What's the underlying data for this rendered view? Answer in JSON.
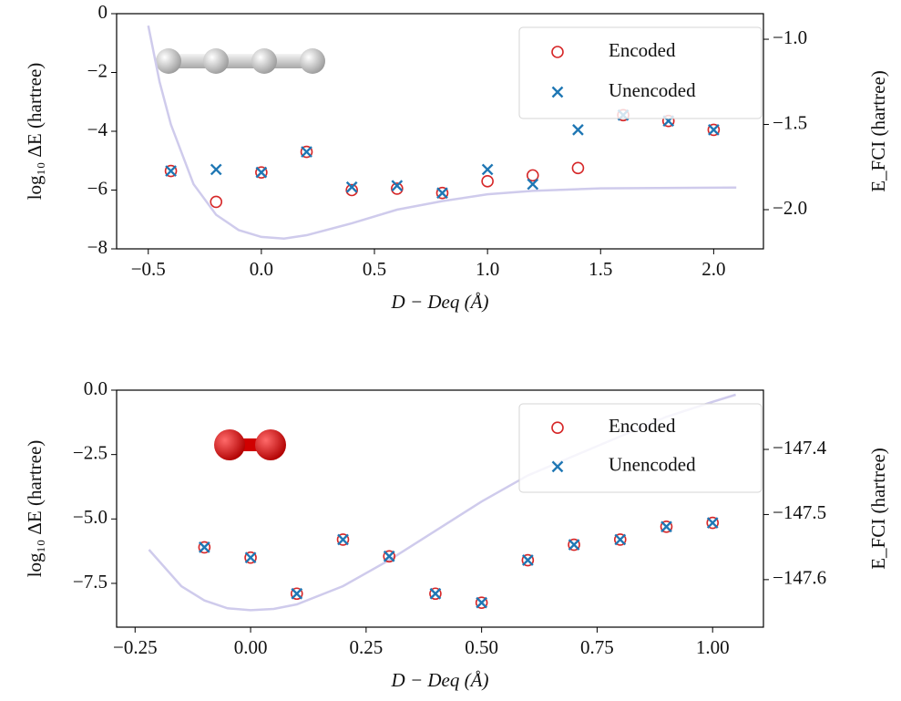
{
  "chart_data": [
    {
      "type": "scatter",
      "xlabel": "D − Deq (Å)",
      "ylabel": "log₁₀ ΔE (hartree)",
      "y2label": "E_FCI (hartree)",
      "xlim": [
        -0.64,
        2.22
      ],
      "ylim": [
        -8,
        0
      ],
      "y2lim": [
        -2.23,
        -0.85
      ],
      "xticks": [
        {
          "value": -0.5,
          "label": "−0.5"
        },
        {
          "value": 0,
          "label": "0.0"
        },
        0.5,
        {
          "value": 1,
          "label": "1.0"
        },
        1.5,
        {
          "value": 2,
          "label": "2.0"
        }
      ],
      "yticks": [
        {
          "value": -8,
          "label": "−8"
        },
        {
          "value": -6,
          "label": "−6"
        },
        {
          "value": -4,
          "label": "−4"
        },
        {
          "value": -2,
          "label": "−2"
        },
        0
      ],
      "y2ticks": [
        {
          "value": -2,
          "label": "−2.0"
        },
        {
          "value": -1.5,
          "label": "−1.5"
        },
        {
          "value": -1,
          "label": "−1.0"
        }
      ],
      "legend": "upper right",
      "series": [
        {
          "name": "Encoded",
          "color": "#d62728",
          "marker": "circle",
          "x": [
            -0.4,
            -0.2,
            0,
            0.2,
            0.4,
            0.6,
            0.8,
            1.0,
            1.2,
            1.4,
            1.6,
            1.8,
            2.0
          ],
          "values": [
            -5.35,
            -6.4,
            -5.4,
            -4.7,
            -6.0,
            -5.95,
            -6.1,
            -5.7,
            -5.5,
            -5.25,
            -3.45,
            -3.65,
            -3.95
          ]
        },
        {
          "name": "Unencoded",
          "color": "#1f77b4",
          "marker": "x",
          "x": [
            -0.4,
            -0.2,
            0,
            0.2,
            0.4,
            0.6,
            0.8,
            1.0,
            1.2,
            1.4,
            1.6,
            1.8,
            2.0
          ],
          "values": [
            -5.35,
            -5.3,
            -5.4,
            -4.7,
            -5.9,
            -5.85,
            -6.1,
            -5.3,
            -5.8,
            -3.95,
            -3.45,
            -3.65,
            -3.95
          ]
        }
      ],
      "curve": {
        "color": "#cfcbec",
        "axis": "y2",
        "x": [
          -0.5,
          -0.45,
          -0.4,
          -0.3,
          -0.2,
          -0.1,
          0,
          0.1,
          0.2,
          0.4,
          0.6,
          0.8,
          1.0,
          1.2,
          1.5,
          2.1
        ],
        "values": [
          -0.92,
          -1.25,
          -1.5,
          -1.85,
          -2.03,
          -2.12,
          -2.16,
          -2.17,
          -2.15,
          -2.08,
          -2.0,
          -1.95,
          -1.91,
          -1.89,
          -1.875,
          -1.87
        ]
      }
    },
    {
      "type": "scatter",
      "xlabel": "D − Deq (Å)",
      "ylabel": "log₁₀ ΔE (hartree)",
      "y2label": "E_FCI (hartree)",
      "xlim": [
        -0.29,
        1.11
      ],
      "ylim": [
        -9.2,
        0
      ],
      "y2lim": [
        -147.673,
        -147.309
      ],
      "xticks": [
        {
          "value": -0.25,
          "label": "−0.25"
        },
        {
          "value": 0,
          "label": "0.00"
        },
        0.25,
        {
          "value": 0.5,
          "label": "0.50"
        },
        0.75,
        {
          "value": 1,
          "label": "1.00"
        }
      ],
      "yticks": [
        {
          "value": -7.5,
          "label": "−7.5"
        },
        {
          "value": -5,
          "label": "−5.0"
        },
        {
          "value": -2.5,
          "label": "−2.5"
        },
        {
          "value": 0,
          "label": "0.0"
        }
      ],
      "y2ticks": [
        {
          "value": -147.6,
          "label": "−147.6"
        },
        {
          "value": -147.5,
          "label": "−147.5"
        },
        {
          "value": -147.4,
          "label": "−147.4"
        }
      ],
      "legend": "upper right",
      "series": [
        {
          "name": "Encoded",
          "color": "#d62728",
          "marker": "circle",
          "x": [
            -0.1,
            0,
            0.1,
            0.2,
            0.3,
            0.4,
            0.5,
            0.6,
            0.7,
            0.8,
            0.9,
            1.0
          ],
          "values": [
            -6.1,
            -6.5,
            -7.9,
            -5.8,
            -6.45,
            -7.9,
            -8.25,
            -6.6,
            -6.0,
            -5.8,
            -5.3,
            -5.15
          ]
        },
        {
          "name": "Unencoded",
          "color": "#1f77b4",
          "marker": "x",
          "x": [
            -0.1,
            0,
            0.1,
            0.2,
            0.3,
            0.4,
            0.5,
            0.6,
            0.7,
            0.8,
            0.9,
            1.0
          ],
          "values": [
            -6.1,
            -6.5,
            -7.9,
            -5.8,
            -6.45,
            -7.9,
            -8.25,
            -6.6,
            -6.0,
            -5.8,
            -5.3,
            -5.15
          ]
        }
      ],
      "curve": {
        "color": "#cfcbec",
        "axis": "y2",
        "x": [
          -0.22,
          -0.15,
          -0.1,
          -0.05,
          0,
          0.05,
          0.1,
          0.2,
          0.3,
          0.4,
          0.5,
          0.6,
          0.7,
          0.8,
          0.9,
          1.0,
          1.05
        ],
        "values": [
          -147.554,
          -147.61,
          -147.632,
          -147.644,
          -147.647,
          -147.645,
          -147.638,
          -147.61,
          -147.57,
          -147.525,
          -147.48,
          -147.44,
          -147.41,
          -147.38,
          -147.35,
          -147.327,
          -147.316
        ]
      }
    }
  ]
}
